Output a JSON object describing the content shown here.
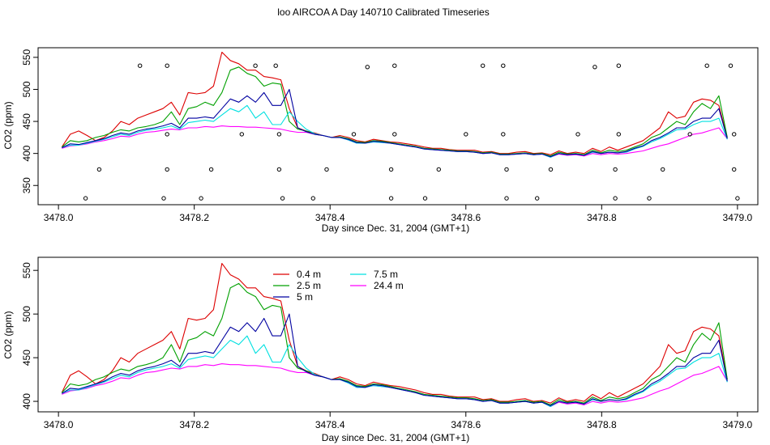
{
  "figure": {
    "title": "loo AIRCOA A  Day 140710  Calibrated Timeseries"
  },
  "chart_data": [
    {
      "type": "scatter",
      "xlabel": "Day since Dec. 31, 2004 (GMT+1)",
      "ylabel": "CO2 (ppm)",
      "xlim": [
        3477.97,
        3479.03
      ],
      "ylim": [
        320,
        565
      ],
      "xticks": [
        "3478.0",
        "3478.2",
        "3478.4",
        "3478.6",
        "3478.8",
        "3479.0"
      ],
      "xtick_values": [
        3478.0,
        3478.2,
        3478.4,
        3478.6,
        3478.8,
        3479.0
      ],
      "yticks": [
        "350",
        "400",
        "450",
        "500",
        "550"
      ],
      "ytick_values": [
        350,
        400,
        450,
        500,
        550
      ],
      "grid": false,
      "series_lines": [
        {
          "name": "0.4 m",
          "color": "#dd0000",
          "values": [
            410,
            430,
            435,
            428,
            420,
            425,
            435,
            450,
            445,
            455,
            460,
            465,
            470,
            480,
            460,
            495,
            493,
            495,
            505,
            558,
            545,
            540,
            530,
            530,
            520,
            518,
            515,
            470,
            440,
            435,
            432,
            428,
            425,
            428,
            425,
            420,
            418,
            422,
            420,
            418,
            417,
            415,
            413,
            410,
            408,
            408,
            406,
            405,
            405,
            405,
            402,
            403,
            400,
            400,
            402,
            403,
            400,
            401,
            398,
            404,
            400,
            402,
            400,
            408,
            403,
            410,
            405,
            410,
            415,
            420,
            430,
            440,
            465,
            455,
            458,
            480,
            485,
            483,
            475,
            425
          ]
        },
        {
          "name": "2.5 m",
          "color": "#00a000",
          "values": [
            410,
            420,
            418,
            420,
            425,
            428,
            433,
            437,
            435,
            440,
            442,
            445,
            450,
            465,
            445,
            470,
            473,
            480,
            475,
            495,
            530,
            535,
            525,
            520,
            505,
            510,
            508,
            450,
            438,
            435,
            430,
            428,
            425,
            426,
            423,
            418,
            417,
            420,
            419,
            417,
            415,
            413,
            411,
            408,
            407,
            406,
            405,
            404,
            404,
            403,
            401,
            402,
            399,
            399,
            400,
            401,
            399,
            400,
            396,
            402,
            399,
            400,
            398,
            405,
            401,
            405,
            403,
            405,
            410,
            415,
            425,
            430,
            440,
            450,
            445,
            465,
            478,
            470,
            490,
            425
          ]
        },
        {
          "name": "5 m",
          "color": "#0000a0",
          "values": [
            409,
            415,
            414,
            417,
            420,
            423,
            428,
            432,
            430,
            435,
            438,
            440,
            443,
            447,
            440,
            455,
            455,
            457,
            455,
            470,
            485,
            480,
            490,
            480,
            495,
            475,
            475,
            500,
            440,
            434,
            430,
            428,
            425,
            425,
            422,
            417,
            416,
            419,
            418,
            416,
            414,
            412,
            410,
            407,
            406,
            405,
            404,
            403,
            403,
            402,
            400,
            401,
            398,
            398,
            399,
            400,
            398,
            399,
            395,
            400,
            398,
            399,
            397,
            403,
            400,
            402,
            401,
            403,
            408,
            412,
            420,
            425,
            432,
            440,
            440,
            450,
            455,
            455,
            470,
            423
          ]
        },
        {
          "name": "7.5 m",
          "color": "#00e0e0",
          "values": [
            409,
            413,
            413,
            416,
            419,
            422,
            426,
            430,
            428,
            433,
            436,
            438,
            440,
            443,
            438,
            448,
            450,
            452,
            450,
            460,
            470,
            465,
            475,
            455,
            465,
            445,
            445,
            465,
            450,
            438,
            431,
            428,
            425,
            425,
            421,
            416,
            416,
            418,
            417,
            416,
            414,
            412,
            410,
            407,
            406,
            405,
            404,
            403,
            403,
            402,
            400,
            401,
            398,
            398,
            399,
            400,
            398,
            399,
            394,
            400,
            398,
            399,
            397,
            402,
            400,
            402,
            401,
            402,
            407,
            411,
            418,
            423,
            430,
            437,
            438,
            445,
            450,
            450,
            455,
            422
          ]
        },
        {
          "name": "24.4 m",
          "color": "#ff00ff",
          "values": [
            408,
            412,
            413,
            415,
            418,
            420,
            423,
            427,
            426,
            430,
            433,
            434,
            436,
            438,
            437,
            440,
            440,
            442,
            441,
            443,
            442,
            442,
            441,
            441,
            440,
            439,
            438,
            435,
            433,
            433,
            430,
            428,
            425,
            425,
            421,
            416,
            416,
            418,
            417,
            416,
            414,
            412,
            410,
            407,
            406,
            405,
            404,
            403,
            403,
            402,
            400,
            401,
            398,
            398,
            399,
            400,
            398,
            399,
            394,
            399,
            397,
            398,
            396,
            400,
            398,
            400,
            399,
            400,
            402,
            404,
            408,
            412,
            415,
            420,
            425,
            430,
            432,
            436,
            440,
            423
          ]
        }
      ],
      "marker_columns": [
        {
          "x": 3478.04,
          "values": [
            330
          ]
        },
        {
          "x": 3478.06,
          "values": [
            375
          ]
        },
        {
          "x": 3478.12,
          "values": [
            537
          ]
        },
        {
          "x": 3478.155,
          "values": [
            330
          ]
        },
        {
          "x": 3478.16,
          "values": [
            375,
            430,
            537
          ]
        },
        {
          "x": 3478.21,
          "values": [
            330
          ]
        },
        {
          "x": 3478.225,
          "values": [
            375
          ]
        },
        {
          "x": 3478.27,
          "values": [
            430
          ]
        },
        {
          "x": 3478.29,
          "values": [
            537
          ]
        },
        {
          "x": 3478.32,
          "values": [
            537
          ]
        },
        {
          "x": 3478.325,
          "values": [
            375,
            430
          ]
        },
        {
          "x": 3478.33,
          "values": [
            330
          ]
        },
        {
          "x": 3478.375,
          "values": [
            330
          ]
        },
        {
          "x": 3478.395,
          "values": [
            375
          ]
        },
        {
          "x": 3478.435,
          "values": [
            430
          ]
        },
        {
          "x": 3478.455,
          "values": [
            535
          ]
        },
        {
          "x": 3478.49,
          "values": [
            330,
            375
          ]
        },
        {
          "x": 3478.495,
          "values": [
            430,
            537
          ]
        },
        {
          "x": 3478.54,
          "values": [
            330
          ]
        },
        {
          "x": 3478.56,
          "values": [
            375
          ]
        },
        {
          "x": 3478.6,
          "values": [
            430
          ]
        },
        {
          "x": 3478.625,
          "values": [
            537
          ]
        },
        {
          "x": 3478.655,
          "values": [
            430,
            537
          ]
        },
        {
          "x": 3478.66,
          "values": [
            330,
            375
          ]
        },
        {
          "x": 3478.705,
          "values": [
            330
          ]
        },
        {
          "x": 3478.725,
          "values": [
            375
          ]
        },
        {
          "x": 3478.765,
          "values": [
            430
          ]
        },
        {
          "x": 3478.79,
          "values": [
            535
          ]
        },
        {
          "x": 3478.82,
          "values": [
            330,
            375
          ]
        },
        {
          "x": 3478.825,
          "values": [
            430,
            537
          ]
        },
        {
          "x": 3478.87,
          "values": [
            330
          ]
        },
        {
          "x": 3478.89,
          "values": [
            375
          ]
        },
        {
          "x": 3478.93,
          "values": [
            430
          ]
        },
        {
          "x": 3478.955,
          "values": [
            537
          ]
        },
        {
          "x": 3478.99,
          "values": [
            537
          ]
        },
        {
          "x": 3478.995,
          "values": [
            375,
            430
          ]
        },
        {
          "x": 3479.0,
          "values": [
            330
          ]
        }
      ],
      "marker_style": "open circle"
    },
    {
      "type": "line",
      "xlabel": "Day since Dec. 31, 2004 (GMT+1)",
      "ylabel": "CO2 (ppm)",
      "xlim": [
        3477.97,
        3479.03
      ],
      "ylim": [
        388,
        565
      ],
      "xticks": [
        "3478.0",
        "3478.2",
        "3478.4",
        "3478.6",
        "3478.8",
        "3479.0"
      ],
      "xtick_values": [
        3478.0,
        3478.2,
        3478.4,
        3478.6,
        3478.8,
        3479.0
      ],
      "yticks": [
        "400",
        "450",
        "500",
        "550"
      ],
      "ytick_values": [
        400,
        450,
        500,
        550
      ],
      "grid": false,
      "legend_placement": "top-center",
      "legend": [
        {
          "label": "0.4 m",
          "color": "#dd0000"
        },
        {
          "label": "2.5 m",
          "color": "#00a000"
        },
        {
          "label": "5 m",
          "color": "#0000a0"
        },
        {
          "label": "7.5 m",
          "color": "#00e0e0"
        },
        {
          "label": "24.4 m",
          "color": "#ff00ff"
        }
      ],
      "series_from_first_panel": true
    }
  ]
}
